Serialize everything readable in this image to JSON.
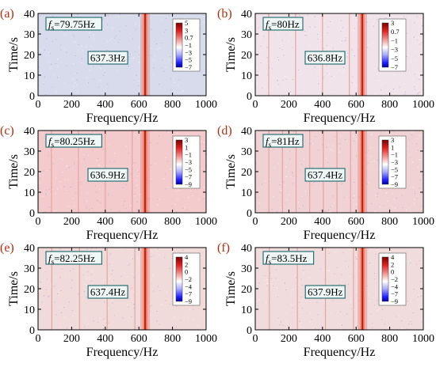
{
  "figure": {
    "x_axis": {
      "label": "Frequency/Hz",
      "range": [
        0,
        1000
      ],
      "ticks": [
        0,
        200,
        400,
        600,
        800,
        1000
      ]
    },
    "y_axis": {
      "label": "Time/s",
      "range": [
        0,
        40
      ],
      "ticks": [
        0,
        10,
        20,
        30,
        40
      ]
    }
  },
  "chart_data": [
    {
      "type": "heatmap",
      "panel_label": "(a)",
      "xlabel": "Frequency/Hz",
      "ylabel": "Time/s",
      "xlim": [
        0,
        1000
      ],
      "ylim": [
        0,
        40
      ],
      "drive_label_sym": "f",
      "drive_label_sub": "s",
      "drive_label_value": "=79.75Hz",
      "peak_label": "637.3Hz",
      "peak_frequency_hz": 637.3,
      "background": "#d8dbec",
      "line_frequencies_hz": [],
      "colorbar_ticks": [
        "5",
        "3",
        "0.7",
        "−1",
        "−3",
        "−5",
        "−7"
      ]
    },
    {
      "type": "heatmap",
      "panel_label": "(b)",
      "xlabel": "Frequency/Hz",
      "ylabel": "Time/s",
      "xlim": [
        0,
        1000
      ],
      "ylim": [
        0,
        40
      ],
      "drive_label_sym": "f",
      "drive_label_sub": "s",
      "drive_label_value": "=80Hz",
      "peak_label": "636.8Hz",
      "peak_frequency_hz": 636.8,
      "background": "#f0e4ea",
      "line_frequencies_hz": [
        80,
        240,
        400,
        560
      ],
      "colorbar_ticks": [
        "3",
        "0.7",
        "−1",
        "−3",
        "−5",
        "−7"
      ]
    },
    {
      "type": "heatmap",
      "panel_label": "(c)",
      "xlabel": "Frequency/Hz",
      "ylabel": "Time/s",
      "xlim": [
        0,
        1000
      ],
      "ylim": [
        0,
        40
      ],
      "drive_label_sym": "f",
      "drive_label_sub": "s",
      "drive_label_value": "=80.25Hz",
      "peak_label": "636.9Hz",
      "peak_frequency_hz": 636.9,
      "background": "#f3cbcc",
      "line_frequencies_hz": [
        80,
        240,
        400,
        560
      ],
      "colorbar_ticks": [
        "3",
        "1",
        "−1",
        "−3",
        "−5",
        "−7",
        "−9"
      ]
    },
    {
      "type": "heatmap",
      "panel_label": "(d)",
      "xlabel": "Frequency/Hz",
      "ylabel": "Time/s",
      "xlim": [
        0,
        1000
      ],
      "ylim": [
        0,
        40
      ],
      "drive_label_sym": "f",
      "drive_label_sub": "s",
      "drive_label_value": "=81Hz",
      "peak_label": "637.4Hz",
      "peak_frequency_hz": 637.4,
      "background": "#f1d2d4",
      "line_frequencies_hz": [
        81,
        162,
        243,
        324,
        405,
        486,
        567
      ],
      "colorbar_ticks": [
        "3",
        "1",
        "−1",
        "−3",
        "−5",
        "−7",
        "−9"
      ]
    },
    {
      "type": "heatmap",
      "panel_label": "(e)",
      "xlabel": "Frequency/Hz",
      "ylabel": "Time/s",
      "xlim": [
        0,
        1000
      ],
      "ylim": [
        0,
        40
      ],
      "drive_label_sym": "f",
      "drive_label_sub": "s",
      "drive_label_value": "=82.25Hz",
      "peak_label": "637.4Hz",
      "peak_frequency_hz": 637.4,
      "background": "#f0dada",
      "line_frequencies_hz": [
        82,
        247,
        411,
        576
      ],
      "colorbar_ticks": [
        "4",
        "2",
        "0",
        "−2",
        "−4",
        "−7",
        "−9"
      ]
    },
    {
      "type": "heatmap",
      "panel_label": "(f)",
      "xlabel": "Frequency/Hz",
      "ylabel": "Time/s",
      "xlim": [
        0,
        1000
      ],
      "ylim": [
        0,
        40
      ],
      "drive_label_sym": "f",
      "drive_label_sub": "s",
      "drive_label_value": "=83.5Hz",
      "peak_label": "637.9Hz",
      "peak_frequency_hz": 637.9,
      "background": "#f0dcdc",
      "line_frequencies_hz": [
        83.5,
        250.5,
        417.5,
        584.5
      ],
      "colorbar_ticks": [
        "4",
        "2",
        "0",
        "−2",
        "−4",
        "−7",
        "−9"
      ]
    }
  ],
  "colors": {
    "peak_line": "#cc2200",
    "peak_glow": "#e8857a",
    "harmonic_line": "#e3a4a0",
    "label_border": "#2a6f74",
    "label_fill": "#eef7f6",
    "panel_label": "#b03010"
  }
}
